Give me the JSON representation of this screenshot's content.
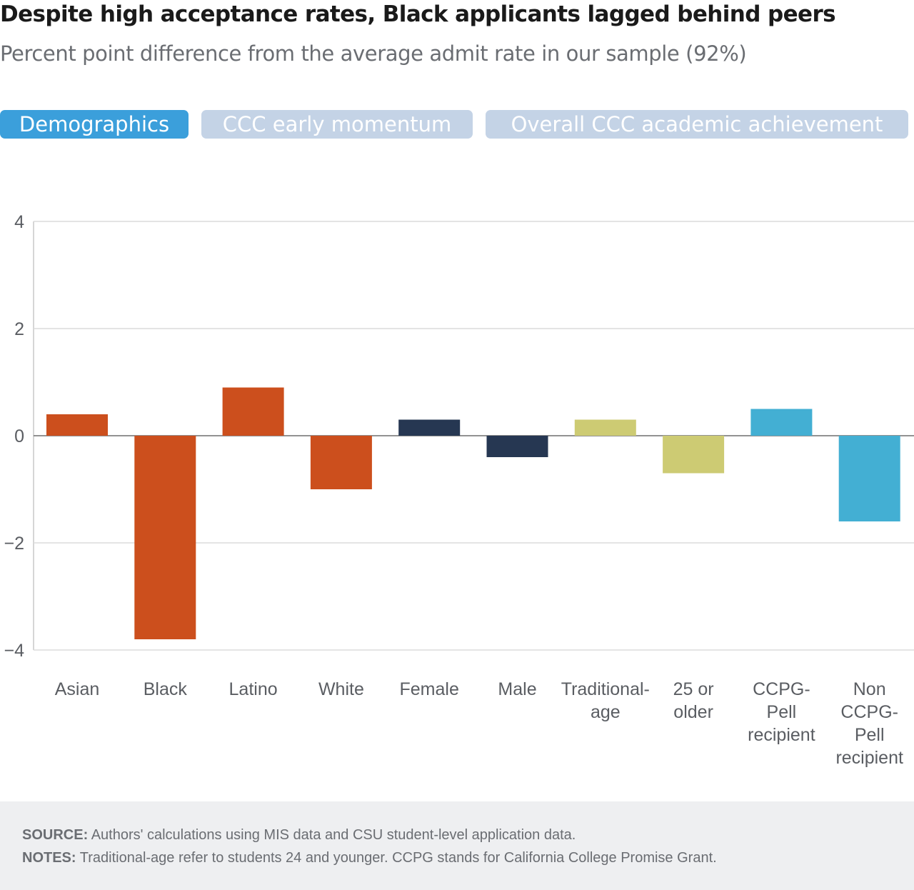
{
  "title": "Despite high acceptance rates, Black applicants lagged behind peers",
  "subtitle": "Percent point difference from the average admit rate in our sample (92%)",
  "tabs": [
    {
      "label": "Demographics",
      "active": true
    },
    {
      "label": "CCC early momentum",
      "active": false
    },
    {
      "label": "Overall CCC academic achievement",
      "active": false
    }
  ],
  "colors": {
    "tab_active": "#3b9fdb",
    "tab_inactive": "#c4d3e6",
    "race": "#cc4f1d",
    "gender": "#263752",
    "age": "#cdcb73",
    "pell": "#43afd3"
  },
  "chart_data": {
    "type": "bar",
    "title": "Despite high acceptance rates, Black applicants lagged behind peers",
    "subtitle": "Percent point difference from the average admit rate in our sample (92%)",
    "xlabel": "",
    "ylabel": "",
    "ylim": [
      -4,
      4
    ],
    "yticks": [
      4,
      2,
      0,
      -2,
      -4
    ],
    "ytick_labels": [
      "4",
      "2",
      "0",
      "−2",
      "−4"
    ],
    "grid": true,
    "legend": "none",
    "categories": [
      {
        "label": "Asian",
        "lines": [
          "Asian"
        ],
        "value": 0.4,
        "color": "#cc4f1d"
      },
      {
        "label": "Black",
        "lines": [
          "Black"
        ],
        "value": -3.8,
        "color": "#cc4f1d"
      },
      {
        "label": "Latino",
        "lines": [
          "Latino"
        ],
        "value": 0.9,
        "color": "#cc4f1d"
      },
      {
        "label": "White",
        "lines": [
          "White"
        ],
        "value": -1.0,
        "color": "#cc4f1d"
      },
      {
        "label": "Female",
        "lines": [
          "Female"
        ],
        "value": 0.3,
        "color": "#263752"
      },
      {
        "label": "Male",
        "lines": [
          "Male"
        ],
        "value": -0.4,
        "color": "#263752"
      },
      {
        "label": "Traditional-age",
        "lines": [
          "Traditional-",
          "age"
        ],
        "value": 0.3,
        "color": "#cdcb73"
      },
      {
        "label": "25 or older",
        "lines": [
          "25 or",
          "older"
        ],
        "value": -0.7,
        "color": "#cdcb73"
      },
      {
        "label": "CCPG-Pell recipient",
        "lines": [
          "CCPG-",
          "Pell",
          "recipient"
        ],
        "value": 0.5,
        "color": "#43afd3"
      },
      {
        "label": "Non CCPG-Pell recipient",
        "lines": [
          "Non",
          "CCPG-",
          "Pell",
          "recipient"
        ],
        "value": -1.6,
        "color": "#43afd3"
      }
    ]
  },
  "footer": {
    "source_label": "SOURCE:",
    "source_text": " Authors' calculations using MIS data and CSU student-level application data.",
    "notes_label": "NOTES:",
    "notes_text": " Traditional-age refer to students 24 and younger. CCPG stands for California College Promise Grant."
  }
}
